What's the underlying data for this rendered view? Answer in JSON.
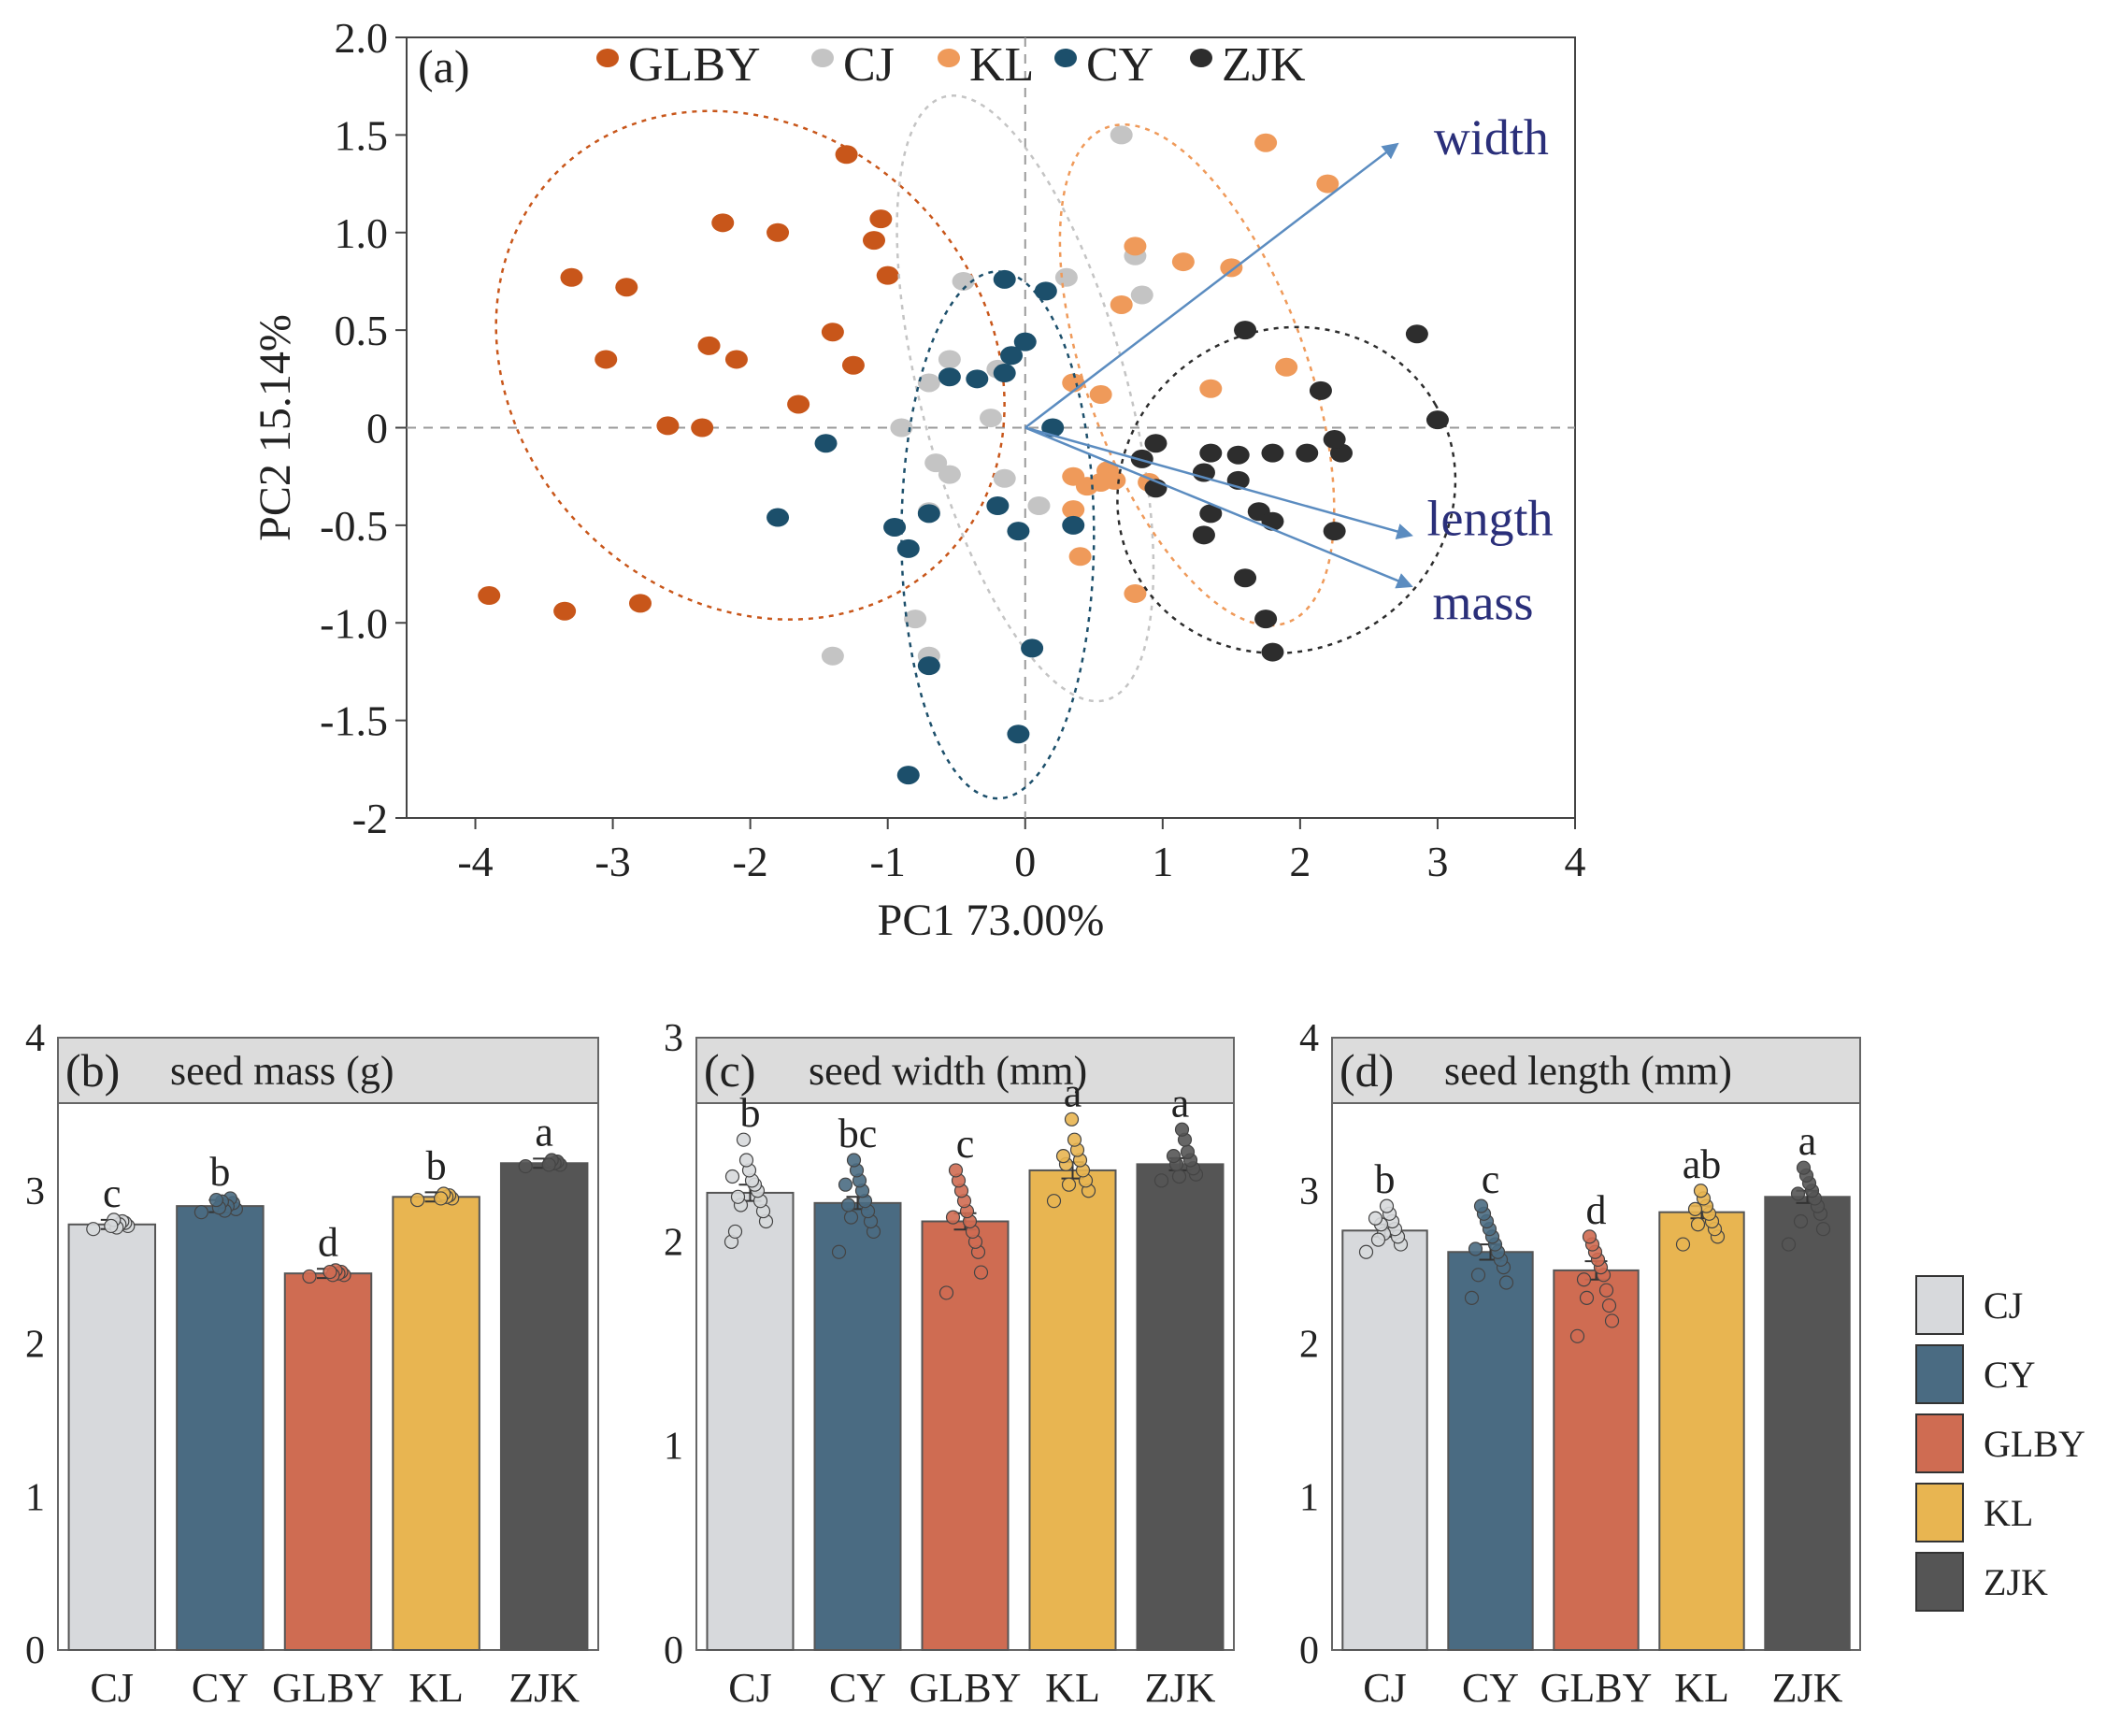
{
  "colors": {
    "GLBY_pca": "#c8561a",
    "CJ_pca": "#c4c4c4",
    "KL_pca": "#ef9a5a",
    "CY_pca": "#1c4f6b",
    "ZJK_pca": "#2d2d2d",
    "arrow": "#5b8cc0",
    "bar_CJ": "#d7d9dc",
    "bar_CY": "#4a6b82",
    "bar_GLBY": "#cf6c52",
    "bar_KL": "#e8b551",
    "bar_ZJK": "#555555",
    "strip": "#dcdcdc"
  },
  "chart_data": [
    {
      "type": "scatter",
      "panel_tag": "(a)",
      "xlabel": "PC1 73.00%",
      "ylabel": "PC2 15.14%",
      "xlim": [
        -4.5,
        4
      ],
      "ylim": [
        -2,
        2
      ],
      "xticks": [
        -4,
        -3,
        -2,
        -1,
        0,
        1,
        2,
        3,
        4
      ],
      "xtick_labels": [
        "-4",
        "-3",
        "-2",
        "-1",
        "0",
        "1",
        "2",
        "3",
        "4"
      ],
      "yticks": [
        2,
        1.5,
        1,
        0.5,
        0,
        -0.5,
        -1,
        -1.5,
        -2
      ],
      "ytick_labels": [
        "2.0",
        "1.5",
        "1.0",
        "0.5",
        "0",
        "-0.5",
        "-1.0",
        "-1.5",
        "-2"
      ],
      "legend_position": "top",
      "series": [
        {
          "name": "GLBY",
          "color_key": "GLBY_pca",
          "points": [
            [
              -3.3,
              0.77
            ],
            [
              -2.9,
              0.72
            ],
            [
              -3.05,
              0.35
            ],
            [
              -2.3,
              0.42
            ],
            [
              -2.1,
              0.35
            ],
            [
              -2.2,
              1.05
            ],
            [
              -1.8,
              1.0
            ],
            [
              -1.3,
              1.4
            ],
            [
              -1.05,
              1.07
            ],
            [
              -1.1,
              0.96
            ],
            [
              -1.0,
              0.78
            ],
            [
              -1.4,
              0.49
            ],
            [
              -1.25,
              0.32
            ],
            [
              -1.65,
              0.12
            ],
            [
              -2.6,
              0.01
            ],
            [
              -2.35,
              0.0
            ],
            [
              -3.9,
              -0.86
            ],
            [
              -3.35,
              -0.94
            ],
            [
              -2.8,
              -0.9
            ]
          ],
          "ellipse": {
            "cx": -2.0,
            "cy": 0.32,
            "rx": 1.7,
            "ry": 1.4,
            "angle": 45
          }
        },
        {
          "name": "CJ",
          "color_key": "CJ_pca",
          "points": [
            [
              0.7,
              1.5
            ],
            [
              0.8,
              0.88
            ],
            [
              0.85,
              0.68
            ],
            [
              0.3,
              0.77
            ],
            [
              -0.45,
              0.75
            ],
            [
              -0.55,
              0.35
            ],
            [
              -0.7,
              0.23
            ],
            [
              -0.2,
              0.3
            ],
            [
              -0.25,
              0.05
            ],
            [
              -0.9,
              0.0
            ],
            [
              -0.65,
              -0.18
            ],
            [
              -0.55,
              -0.24
            ],
            [
              -0.15,
              -0.26
            ],
            [
              0.1,
              -0.4
            ],
            [
              -0.7,
              -0.43
            ],
            [
              -0.8,
              -0.98
            ],
            [
              -0.7,
              -1.17
            ],
            [
              -1.4,
              -1.17
            ]
          ],
          "ellipse": {
            "cx": 0.0,
            "cy": 0.15,
            "rx": 0.75,
            "ry": 1.6,
            "angle": 15
          }
        },
        {
          "name": "KL",
          "color_key": "KL_pca",
          "points": [
            [
              1.75,
              1.46
            ],
            [
              2.2,
              1.25
            ],
            [
              0.8,
              0.93
            ],
            [
              1.15,
              0.85
            ],
            [
              1.5,
              0.82
            ],
            [
              0.7,
              0.63
            ],
            [
              1.35,
              0.2
            ],
            [
              1.9,
              0.31
            ],
            [
              0.35,
              0.23
            ],
            [
              0.55,
              0.17
            ],
            [
              0.35,
              -0.25
            ],
            [
              0.45,
              -0.3
            ],
            [
              0.55,
              -0.28
            ],
            [
              0.6,
              -0.22
            ],
            [
              0.65,
              -0.27
            ],
            [
              0.9,
              -0.28
            ],
            [
              0.35,
              -0.42
            ],
            [
              0.4,
              -0.66
            ],
            [
              0.8,
              -0.85
            ]
          ],
          "ellipse": {
            "cx": 1.25,
            "cy": 0.27,
            "rx": 0.8,
            "ry": 1.35,
            "angle": 20
          }
        },
        {
          "name": "CY",
          "color_key": "CY_pca",
          "points": [
            [
              -0.15,
              0.76
            ],
            [
              0.15,
              0.7
            ],
            [
              0.0,
              0.44
            ],
            [
              -0.1,
              0.37
            ],
            [
              -0.15,
              0.28
            ],
            [
              -0.35,
              0.25
            ],
            [
              -0.55,
              0.26
            ],
            [
              0.2,
              0.0
            ],
            [
              -1.45,
              -0.08
            ],
            [
              -1.8,
              -0.46
            ],
            [
              -0.2,
              -0.4
            ],
            [
              -0.95,
              -0.51
            ],
            [
              -0.85,
              -0.62
            ],
            [
              -0.7,
              -0.44
            ],
            [
              -0.05,
              -0.53
            ],
            [
              0.35,
              -0.5
            ],
            [
              0.05,
              -1.13
            ],
            [
              -0.7,
              -1.22
            ],
            [
              -0.05,
              -1.57
            ],
            [
              -0.85,
              -1.78
            ]
          ],
          "ellipse": {
            "cx": -0.2,
            "cy": -0.55,
            "rx": 0.7,
            "ry": 1.35,
            "angle": 0
          }
        },
        {
          "name": "ZJK",
          "color_key": "ZJK_pca",
          "points": [
            [
              1.6,
              0.5
            ],
            [
              2.85,
              0.48
            ],
            [
              2.15,
              0.19
            ],
            [
              3.0,
              0.04
            ],
            [
              0.95,
              -0.08
            ],
            [
              1.35,
              -0.13
            ],
            [
              1.55,
              -0.14
            ],
            [
              1.8,
              -0.13
            ],
            [
              2.05,
              -0.13
            ],
            [
              2.3,
              -0.13
            ],
            [
              2.25,
              -0.06
            ],
            [
              0.85,
              -0.16
            ],
            [
              1.3,
              -0.23
            ],
            [
              1.55,
              -0.27
            ],
            [
              0.95,
              -0.31
            ],
            [
              1.35,
              -0.44
            ],
            [
              1.7,
              -0.43
            ],
            [
              1.8,
              -0.48
            ],
            [
              1.3,
              -0.55
            ],
            [
              2.25,
              -0.53
            ],
            [
              1.6,
              -0.77
            ],
            [
              1.75,
              -0.98
            ],
            [
              1.8,
              -1.15
            ]
          ],
          "ellipse": {
            "cx": 1.9,
            "cy": -0.32,
            "rx": 1.25,
            "ry": 0.82,
            "angle": 30
          }
        }
      ],
      "vectors": [
        {
          "name": "width",
          "label": "width",
          "x": 2.7,
          "y": 1.45
        },
        {
          "name": "length",
          "label": "length",
          "x": 2.8,
          "y": -0.55
        },
        {
          "name": "mass",
          "label": "mass",
          "x": 2.8,
          "y": -0.81
        }
      ]
    },
    {
      "type": "bar",
      "panel_tag": "(b)",
      "title": "seed mass (g)",
      "categories": [
        "CJ",
        "CY",
        "GLBY",
        "KL",
        "ZJK"
      ],
      "values": [
        2.78,
        2.9,
        2.46,
        2.96,
        3.18
      ],
      "errors": [
        0.03,
        0.04,
        0.03,
        0.03,
        0.03
      ],
      "letters": [
        "c",
        "b",
        "d",
        "b",
        "a"
      ],
      "jitter_points": [
        [
          2.75,
          2.77,
          2.79,
          2.8,
          2.78,
          2.76,
          2.81,
          2.77
        ],
        [
          2.86,
          2.88,
          2.92,
          2.95,
          2.9,
          2.87,
          2.93,
          2.89,
          2.94
        ],
        [
          2.44,
          2.45,
          2.47,
          2.46,
          2.48,
          2.45,
          2.47
        ],
        [
          2.94,
          2.95,
          2.97,
          2.96,
          2.98,
          2.95
        ],
        [
          3.16,
          3.17,
          3.19,
          3.18,
          3.2,
          3.17
        ]
      ],
      "ylim": [
        0,
        4
      ],
      "yticks": [
        0,
        1,
        2,
        3,
        4
      ],
      "ytick_labels": [
        "0",
        "1",
        "2",
        "3",
        "4"
      ]
    },
    {
      "type": "bar",
      "panel_tag": "(c)",
      "title": "seed width (mm)",
      "categories": [
        "CJ",
        "CY",
        "GLBY",
        "KL",
        "ZJK"
      ],
      "values": [
        2.24,
        2.19,
        2.1,
        2.35,
        2.38
      ],
      "errors": [
        0.04,
        0.03,
        0.04,
        0.04,
        0.03
      ],
      "letters": [
        "b",
        "bc",
        "c",
        "a",
        "a"
      ],
      "jitter_points": [
        [
          2.0,
          2.1,
          2.15,
          2.2,
          2.25,
          2.28,
          2.3,
          2.35,
          2.4,
          2.5,
          2.18,
          2.22,
          2.05,
          2.32
        ],
        [
          1.95,
          2.05,
          2.1,
          2.15,
          2.2,
          2.25,
          2.3,
          2.35,
          2.4,
          2.12,
          2.18,
          2.28
        ],
        [
          1.75,
          1.85,
          1.95,
          2.0,
          2.05,
          2.1,
          2.15,
          2.2,
          2.25,
          2.3,
          2.35,
          2.12
        ],
        [
          2.2,
          2.25,
          2.3,
          2.35,
          2.4,
          2.45,
          2.5,
          2.6,
          2.28,
          2.38,
          2.42
        ],
        [
          2.3,
          2.33,
          2.36,
          2.4,
          2.44,
          2.5,
          2.55,
          2.32,
          2.38,
          2.42
        ]
      ],
      "ylim": [
        0,
        3
      ],
      "yticks": [
        0,
        1,
        2,
        3
      ],
      "ytick_labels": [
        "0",
        "1",
        "2",
        "3"
      ]
    },
    {
      "type": "bar",
      "panel_tag": "(d)",
      "title": "seed length (mm)",
      "categories": [
        "CJ",
        "CY",
        "GLBY",
        "KL",
        "ZJK"
      ],
      "values": [
        2.74,
        2.6,
        2.48,
        2.86,
        2.96
      ],
      "errors": [
        0.04,
        0.05,
        0.06,
        0.04,
        0.04
      ],
      "letters": [
        "b",
        "c",
        "d",
        "ab",
        "a"
      ],
      "jitter_points": [
        [
          2.6,
          2.65,
          2.7,
          2.75,
          2.8,
          2.85,
          2.9,
          2.72,
          2.78,
          2.68,
          2.82
        ],
        [
          2.3,
          2.4,
          2.5,
          2.55,
          2.6,
          2.65,
          2.7,
          2.75,
          2.8,
          2.85,
          2.9,
          2.45,
          2.62
        ],
        [
          2.05,
          2.15,
          2.25,
          2.35,
          2.45,
          2.5,
          2.55,
          2.6,
          2.65,
          2.7,
          2.3,
          2.42
        ],
        [
          2.65,
          2.7,
          2.75,
          2.8,
          2.85,
          2.9,
          2.95,
          3.0,
          2.78,
          2.88
        ],
        [
          2.65,
          2.75,
          2.85,
          2.9,
          2.95,
          3.0,
          3.05,
          3.1,
          3.15,
          2.8,
          2.98
        ]
      ],
      "ylim": [
        0,
        4
      ],
      "yticks": [
        0,
        1,
        2,
        3,
        4
      ],
      "ytick_labels": [
        "0",
        "1",
        "2",
        "3",
        "4"
      ]
    }
  ],
  "pca_legend": [
    {
      "name": "GLBY",
      "color_key": "GLBY_pca"
    },
    {
      "name": "CJ",
      "color_key": "CJ_pca"
    },
    {
      "name": "KL",
      "color_key": "KL_pca"
    },
    {
      "name": "CY",
      "color_key": "CY_pca"
    },
    {
      "name": "ZJK",
      "color_key": "ZJK_pca"
    }
  ],
  "bar_legend": [
    {
      "name": "CJ",
      "color_key": "bar_CJ"
    },
    {
      "name": "CY",
      "color_key": "bar_CY"
    },
    {
      "name": "GLBY",
      "color_key": "bar_GLBY"
    },
    {
      "name": "KL",
      "color_key": "bar_KL"
    },
    {
      "name": "ZJK",
      "color_key": "bar_ZJK"
    }
  ]
}
